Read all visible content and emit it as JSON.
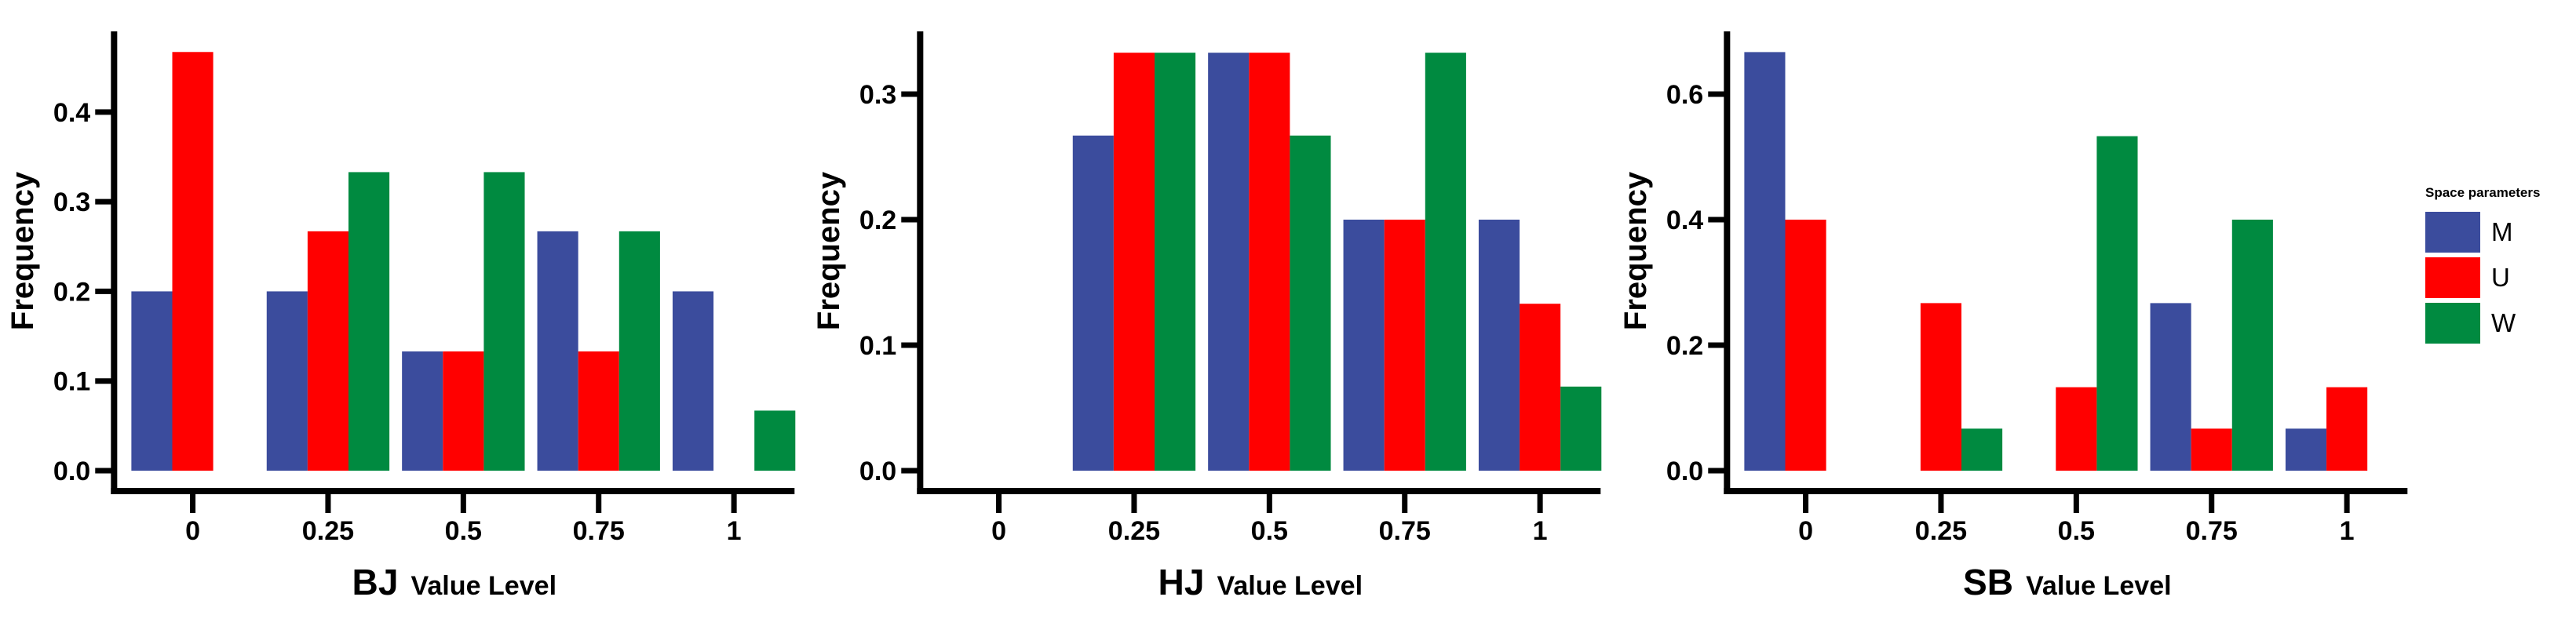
{
  "colors": {
    "M": "#3B4C9D",
    "U": "#FF0000",
    "W": "#008A40",
    "axis": "#000000",
    "background": "#FFFFFF"
  },
  "legend": {
    "title": "Space parameters",
    "position": "right",
    "entries": [
      {
        "label": "M",
        "color": "#3B4C9D"
      },
      {
        "label": "U",
        "color": "#FF0000"
      },
      {
        "label": "W",
        "color": "#008A40"
      }
    ]
  },
  "chart_data": [
    {
      "type": "bar",
      "panel": "BJ",
      "title": "BJ",
      "xlabel": "Value Level",
      "ylabel": "Frequency",
      "categories": [
        "0",
        "0.25",
        "0.5",
        "0.75",
        "1"
      ],
      "series": [
        {
          "name": "M",
          "color": "#3B4C9D",
          "values": [
            0.2,
            0.2,
            0.133,
            0.267,
            0.2
          ]
        },
        {
          "name": "U",
          "color": "#FF0000",
          "values": [
            0.467,
            0.267,
            0.133,
            0.133,
            0
          ]
        },
        {
          "name": "W",
          "color": "#008A40",
          "values": [
            0,
            0.333,
            0.333,
            0.267,
            0.067
          ]
        }
      ],
      "yticks": [
        0,
        0.1,
        0.2,
        0.3,
        0.4
      ],
      "ytick_labels": [
        "0.0",
        "0.1",
        "0.2",
        "0.3",
        "0.4"
      ],
      "ylim": [
        0,
        0.49
      ],
      "grid": false
    },
    {
      "type": "bar",
      "panel": "HJ",
      "title": "HJ",
      "xlabel": "Value Level",
      "ylabel": "Frequency",
      "categories": [
        "0",
        "0.25",
        "0.5",
        "0.75",
        "1"
      ],
      "series": [
        {
          "name": "M",
          "color": "#3B4C9D",
          "values": [
            0,
            0.267,
            0.333,
            0.2,
            0.2
          ]
        },
        {
          "name": "U",
          "color": "#FF0000",
          "values": [
            0,
            0.333,
            0.333,
            0.2,
            0.133
          ]
        },
        {
          "name": "W",
          "color": "#008A40",
          "values": [
            0,
            0.333,
            0.267,
            0.333,
            0.067
          ]
        }
      ],
      "yticks": [
        0,
        0.1,
        0.2,
        0.3
      ],
      "ytick_labels": [
        "0.0",
        "0.1",
        "0.2",
        "0.3"
      ],
      "ylim": [
        0,
        0.35
      ],
      "grid": false
    },
    {
      "type": "bar",
      "panel": "SB",
      "title": "SB",
      "xlabel": "Value Level",
      "ylabel": "Frequency",
      "categories": [
        "0",
        "0.25",
        "0.5",
        "0.75",
        "1"
      ],
      "series": [
        {
          "name": "M",
          "color": "#3B4C9D",
          "values": [
            0.667,
            0,
            0,
            0.267,
            0.067
          ]
        },
        {
          "name": "U",
          "color": "#FF0000",
          "values": [
            0.4,
            0.267,
            0.133,
            0.067,
            0.133
          ]
        },
        {
          "name": "W",
          "color": "#008A40",
          "values": [
            0,
            0.067,
            0.533,
            0.4,
            0
          ]
        }
      ],
      "yticks": [
        0,
        0.2,
        0.4,
        0.6
      ],
      "ytick_labels": [
        "0.0",
        "0.2",
        "0.4",
        "0.6"
      ],
      "ylim": [
        0,
        0.7
      ],
      "grid": false
    }
  ]
}
